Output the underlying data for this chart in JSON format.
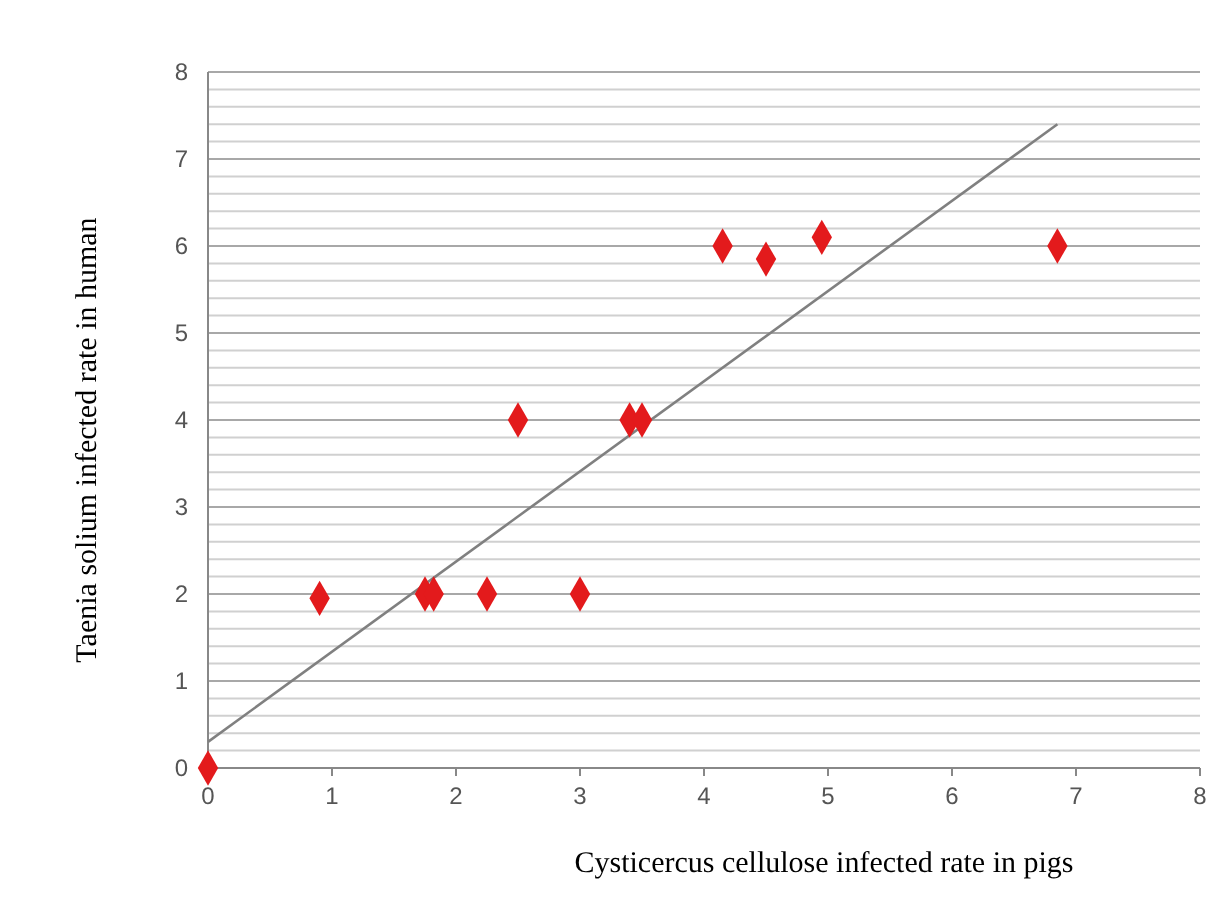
{
  "chart_data": {
    "type": "scatter",
    "xlabel": "Cysticercus cellulose infected rate in pigs",
    "ylabel": "Taenia solium infected rate in human",
    "xlim": [
      0,
      8
    ],
    "xticks": [
      0,
      1,
      2,
      3,
      4,
      5,
      6,
      7,
      8
    ],
    "ylim": [
      0,
      8
    ],
    "yticks": [
      0,
      {
        "value": 0.2,
        "label": null
      },
      {
        "value": 0.4,
        "label": null
      },
      {
        "value": 0.6,
        "label": null
      },
      {
        "value": 0.8,
        "label": null
      },
      1,
      {
        "value": 1.2,
        "label": null
      },
      {
        "value": 1.4,
        "label": null
      },
      {
        "value": 1.6,
        "label": null
      },
      {
        "value": 1.8,
        "label": null
      },
      2,
      {
        "value": 2.2,
        "label": null
      },
      {
        "value": 2.4,
        "label": null
      },
      {
        "value": 2.6,
        "label": null
      },
      {
        "value": 2.8,
        "label": null
      },
      3,
      {
        "value": 3.2,
        "label": null
      },
      {
        "value": 3.4,
        "label": null
      },
      {
        "value": 3.6,
        "label": null
      },
      {
        "value": 3.8,
        "label": null
      },
      4,
      {
        "value": 4.2,
        "label": null
      },
      {
        "value": 4.4,
        "label": null
      },
      {
        "value": 4.6,
        "label": null
      },
      {
        "value": 4.8,
        "label": null
      },
      5,
      {
        "value": 5.2,
        "label": null
      },
      {
        "value": 5.4,
        "label": null
      },
      {
        "value": 5.6,
        "label": null
      },
      {
        "value": 5.8,
        "label": null
      },
      6,
      {
        "value": 6.2,
        "label": null
      },
      {
        "value": 6.4,
        "label": null
      },
      {
        "value": 6.6,
        "label": null
      },
      {
        "value": 6.8,
        "label": null
      },
      7,
      {
        "value": 7.2,
        "label": null
      },
      {
        "value": 7.4,
        "label": null
      },
      {
        "value": 7.6,
        "label": null
      },
      {
        "value": 7.8,
        "label": null
      },
      8
    ],
    "grid": "y",
    "series": [
      {
        "color": "#e31a1c",
        "marker": "diamond",
        "x": [
          0,
          0.9,
          1.75,
          1.82,
          2.25,
          2.5,
          3.0,
          3.4,
          3.5,
          4.15,
          4.5,
          4.95,
          6.85
        ],
        "values": [
          0,
          1.95,
          2,
          2,
          2,
          4,
          2,
          4,
          4,
          6,
          5.85,
          6.1,
          6
        ]
      },
      {
        "type": "line",
        "color": "#808080",
        "marker": "none",
        "line_style": "solid",
        "x": [
          0,
          6.85
        ],
        "values": [
          0.3,
          7.4
        ]
      }
    ]
  }
}
